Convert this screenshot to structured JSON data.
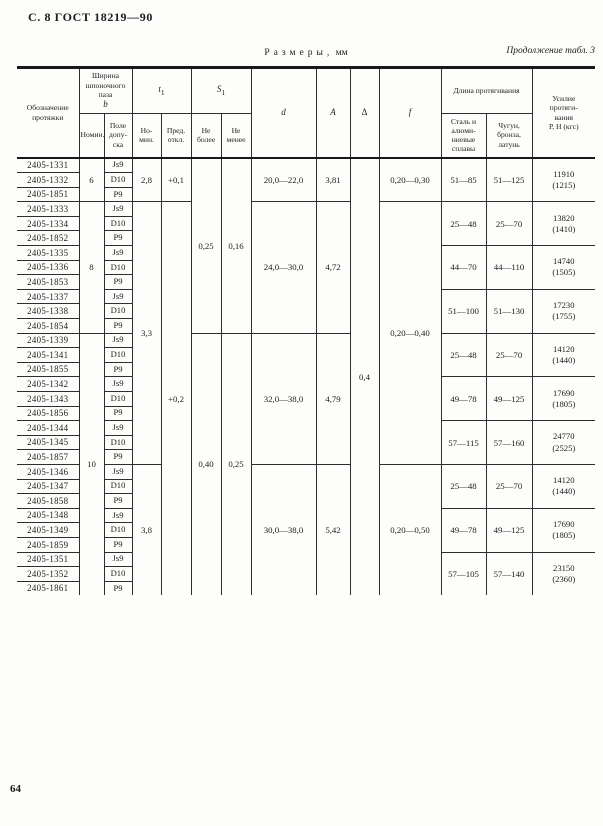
{
  "page": {
    "header_left": "С. 8 ГОСТ 18219—90",
    "caption_spaced": "Размеры,",
    "caption_unit": "мм",
    "continuation": "Продолжение табл. 3",
    "page_number": "64"
  },
  "table": {
    "header": {
      "designation": "Обозначение\nпротяжки",
      "b_title": "Ширина\nшпоночного\nпаза",
      "b_sym": "b",
      "t1_sym": "t",
      "t1_sub": "1",
      "s1_sym": "S",
      "s1_sub": "1",
      "b_nominal": "Номин.",
      "b_tolerance": "Поле\nдопу-\nска",
      "t1_nominal": "Но-\nмин.",
      "t1_deviation": "Пред.\nоткл.",
      "s1_max": "Не\nболее",
      "s1_min": "Не\nменее",
      "d_sym": "d",
      "a_sym": "А",
      "delta_sym": "Δ",
      "f_sym": "f",
      "length_title": "Длина протягивания",
      "length_steel": "Сталь и\nалюми-\nниевые\nсплавы",
      "length_iron": "Чугун,\nбронза,\nлатунь",
      "force": "Усилие\nпротяги-\nвания\nР, Н (кгс)"
    },
    "rows": [
      [
        {
          "n": "designation",
          "v": "2405-1331"
        },
        {
          "n": "b-nominal",
          "v": "6",
          "r": 3
        },
        {
          "n": "b-tolerance",
          "v": "Js9"
        },
        {
          "n": "t1-nominal",
          "v": "2,8",
          "r": 3
        },
        {
          "n": "t1-deviation",
          "v": "+0,1",
          "r": 3
        },
        {
          "n": "s1-max",
          "v": "0,25",
          "r": 12
        },
        {
          "n": "s1-min",
          "v": "0,16",
          "r": 12
        },
        {
          "n": "d",
          "v": "20,0—22,0",
          "r": 3
        },
        {
          "n": "A",
          "v": "3,81",
          "r": 3
        },
        {
          "n": "delta",
          "v": "0,4",
          "r": 30
        },
        {
          "n": "f",
          "v": "0,20—0,30",
          "r": 3
        },
        {
          "n": "len-steel",
          "v": "51—85",
          "r": 3
        },
        {
          "n": "len-iron",
          "v": "51—125",
          "r": 3
        },
        {
          "n": "force",
          "v": "11910\n(1215)",
          "r": 3
        }
      ],
      [
        {
          "n": "designation",
          "v": "2405-1332"
        },
        {
          "n": "b-tolerance",
          "v": "D10"
        }
      ],
      [
        {
          "n": "designation",
          "v": "2405-1851"
        },
        {
          "n": "b-tolerance",
          "v": "P9"
        }
      ],
      [
        {
          "n": "designation",
          "v": "2405-1333"
        },
        {
          "n": "b-nominal",
          "v": "8",
          "r": 9
        },
        {
          "n": "b-tolerance",
          "v": "Js9"
        },
        {
          "n": "t1-nominal",
          "v": "3,3",
          "r": 18
        },
        {
          "n": "t1-deviation",
          "v": "+0,2",
          "r": 27
        },
        {
          "n": "d",
          "v": "24,0—30,0",
          "r": 9
        },
        {
          "n": "A",
          "v": "4,72",
          "r": 9
        },
        {
          "n": "f",
          "v": "0,20—0,40",
          "r": 18
        },
        {
          "n": "len-steel",
          "v": "25—48",
          "r": 3
        },
        {
          "n": "len-iron",
          "v": "25—70",
          "r": 3
        },
        {
          "n": "force",
          "v": "13820\n(1410)",
          "r": 3
        }
      ],
      [
        {
          "n": "designation",
          "v": "2405-1334"
        },
        {
          "n": "b-tolerance",
          "v": "D10"
        }
      ],
      [
        {
          "n": "designation",
          "v": "2405-1852"
        },
        {
          "n": "b-tolerance",
          "v": "P9"
        }
      ],
      [
        {
          "n": "designation",
          "v": "2405-1335"
        },
        {
          "n": "b-tolerance",
          "v": "Js9"
        },
        {
          "n": "len-steel",
          "v": "44—70",
          "r": 3
        },
        {
          "n": "len-iron",
          "v": "44—110",
          "r": 3
        },
        {
          "n": "force",
          "v": "14740\n(1505)",
          "r": 3
        }
      ],
      [
        {
          "n": "designation",
          "v": "2405-1336"
        },
        {
          "n": "b-tolerance",
          "v": "D10"
        }
      ],
      [
        {
          "n": "designation",
          "v": "2405-1853"
        },
        {
          "n": "b-tolerance",
          "v": "P9"
        }
      ],
      [
        {
          "n": "designation",
          "v": "2405-1337"
        },
        {
          "n": "b-tolerance",
          "v": "Js9"
        },
        {
          "n": "len-steel",
          "v": "51—100",
          "r": 3
        },
        {
          "n": "len-iron",
          "v": "51—130",
          "r": 3
        },
        {
          "n": "force",
          "v": "17230\n(1755)",
          "r": 3
        }
      ],
      [
        {
          "n": "designation",
          "v": "2405-1338"
        },
        {
          "n": "b-tolerance",
          "v": "D10"
        }
      ],
      [
        {
          "n": "designation",
          "v": "2405-1854"
        },
        {
          "n": "b-tolerance",
          "v": "P9"
        }
      ],
      [
        {
          "n": "designation",
          "v": "2405-1339"
        },
        {
          "n": "b-nominal",
          "v": "10",
          "r": 18
        },
        {
          "n": "b-tolerance",
          "v": "Js9"
        },
        {
          "n": "s1-max",
          "v": "0,40",
          "r": 18
        },
        {
          "n": "s1-min",
          "v": "0,25",
          "r": 18
        },
        {
          "n": "d",
          "v": "32,0—38,0",
          "r": 9
        },
        {
          "n": "A",
          "v": "4,79",
          "r": 9
        },
        {
          "n": "len-steel",
          "v": "25—48",
          "r": 3
        },
        {
          "n": "len-iron",
          "v": "25—70",
          "r": 3
        },
        {
          "n": "force",
          "v": "14120\n(1440)",
          "r": 3
        }
      ],
      [
        {
          "n": "designation",
          "v": "2405-1341"
        },
        {
          "n": "b-tolerance",
          "v": "D10"
        }
      ],
      [
        {
          "n": "designation",
          "v": "2405-1855"
        },
        {
          "n": "b-tolerance",
          "v": "P9"
        }
      ],
      [
        {
          "n": "designation",
          "v": "2405-1342"
        },
        {
          "n": "b-tolerance",
          "v": "Js9"
        },
        {
          "n": "len-steel",
          "v": "49—78",
          "r": 3
        },
        {
          "n": "len-iron",
          "v": "49—125",
          "r": 3
        },
        {
          "n": "force",
          "v": "17690\n(1805)",
          "r": 3
        }
      ],
      [
        {
          "n": "designation",
          "v": "2405-1343"
        },
        {
          "n": "b-tolerance",
          "v": "D10"
        }
      ],
      [
        {
          "n": "designation",
          "v": "2405-1856"
        },
        {
          "n": "b-tolerance",
          "v": "P9"
        }
      ],
      [
        {
          "n": "designation",
          "v": "2405-1344"
        },
        {
          "n": "b-tolerance",
          "v": "Js9"
        },
        {
          "n": "len-steel",
          "v": "57—115",
          "r": 3
        },
        {
          "n": "len-iron",
          "v": "57—160",
          "r": 3
        },
        {
          "n": "force",
          "v": "24770\n(2525)",
          "r": 3
        }
      ],
      [
        {
          "n": "designation",
          "v": "2405-1345"
        },
        {
          "n": "b-tolerance",
          "v": "D10"
        }
      ],
      [
        {
          "n": "designation",
          "v": "2405-1857"
        },
        {
          "n": "b-tolerance",
          "v": "P9"
        }
      ],
      [
        {
          "n": "designation",
          "v": "2405-1346"
        },
        {
          "n": "b-tolerance",
          "v": "Js9"
        },
        {
          "n": "t1-nominal",
          "v": "3,8",
          "r": 9
        },
        {
          "n": "d",
          "v": "30,0—38,0",
          "r": 9
        },
        {
          "n": "A",
          "v": "5,42",
          "r": 9
        },
        {
          "n": "f",
          "v": "0,20—0,50",
          "r": 9
        },
        {
          "n": "len-steel",
          "v": "25—48",
          "r": 3
        },
        {
          "n": "len-iron",
          "v": "25—70",
          "r": 3
        },
        {
          "n": "force",
          "v": "14120\n(1440)",
          "r": 3
        }
      ],
      [
        {
          "n": "designation",
          "v": "2405-1347"
        },
        {
          "n": "b-tolerance",
          "v": "D10"
        }
      ],
      [
        {
          "n": "designation",
          "v": "2405-1858"
        },
        {
          "n": "b-tolerance",
          "v": "P9"
        }
      ],
      [
        {
          "n": "designation",
          "v": "2405-1348"
        },
        {
          "n": "b-tolerance",
          "v": "Js9"
        },
        {
          "n": "len-steel",
          "v": "49—78",
          "r": 3
        },
        {
          "n": "len-iron",
          "v": "49—125",
          "r": 3
        },
        {
          "n": "force",
          "v": "17690\n(1805)",
          "r": 3
        }
      ],
      [
        {
          "n": "designation",
          "v": "2405-1349"
        },
        {
          "n": "b-tolerance",
          "v": "D10"
        }
      ],
      [
        {
          "n": "designation",
          "v": "2405-1859"
        },
        {
          "n": "b-tolerance",
          "v": "P9"
        }
      ],
      [
        {
          "n": "designation",
          "v": "2405-1351"
        },
        {
          "n": "b-tolerance",
          "v": "Js9"
        },
        {
          "n": "len-steel",
          "v": "57—105",
          "r": 3
        },
        {
          "n": "len-iron",
          "v": "57—140",
          "r": 3
        },
        {
          "n": "force",
          "v": "23150\n(2360)",
          "r": 3
        }
      ],
      [
        {
          "n": "designation",
          "v": "2405-1352"
        },
        {
          "n": "b-tolerance",
          "v": "D10"
        }
      ],
      [
        {
          "n": "designation",
          "v": "2405-1861"
        },
        {
          "n": "b-tolerance",
          "v": "P9"
        }
      ]
    ]
  }
}
